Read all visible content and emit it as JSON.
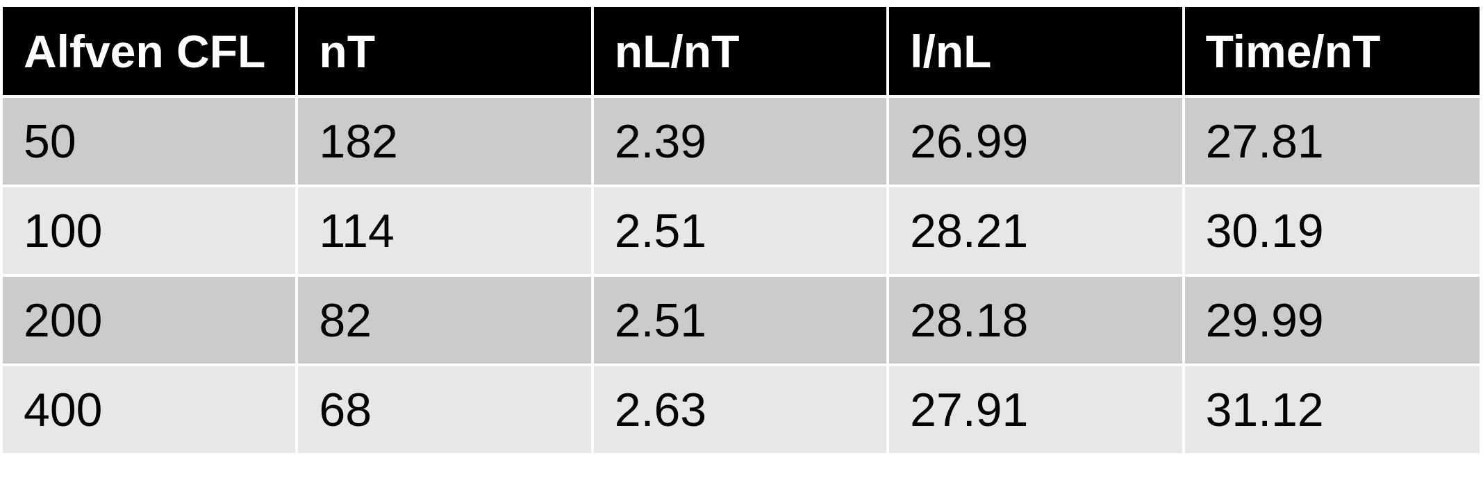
{
  "table": {
    "headers": [
      "Alfven CFL",
      "nT",
      "nL/nT",
      "l/nL",
      "Time/nT"
    ],
    "rows": [
      [
        "50",
        "182",
        "2.39",
        "26.99",
        "27.81"
      ],
      [
        "100",
        "114",
        "2.51",
        "28.21",
        "30.19"
      ],
      [
        "200",
        "82",
        "2.51",
        "28.18",
        "29.99"
      ],
      [
        "400",
        "68",
        "2.63",
        "27.91",
        "31.12"
      ]
    ]
  },
  "colors": {
    "header_bg": "#000000",
    "header_text": "#ffffff",
    "row_odd_bg": "#cbcbcb",
    "row_even_bg": "#e7e7e7"
  }
}
